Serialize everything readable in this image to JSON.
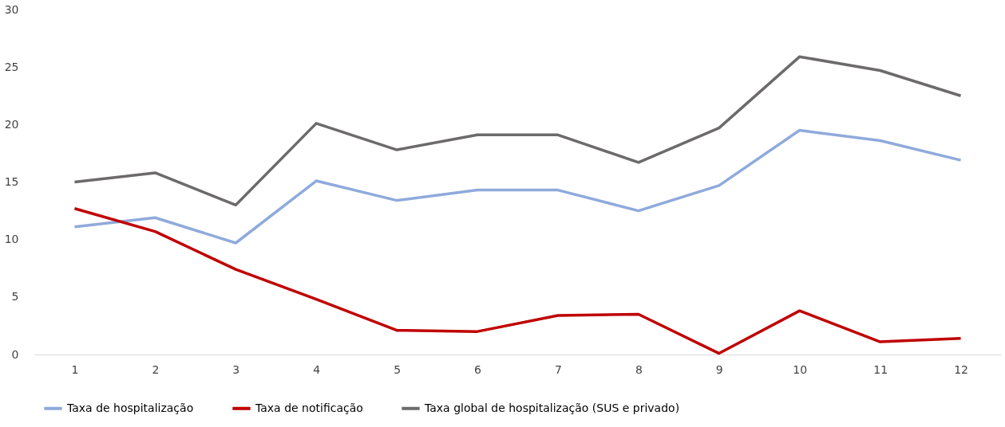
{
  "chart_data": {
    "type": "line",
    "categories": [
      "1",
      "2",
      "3",
      "4",
      "5",
      "6",
      "7",
      "8",
      "9",
      "10",
      "11",
      "12"
    ],
    "series": [
      {
        "name": "Taxa de hospitalização",
        "color": "#8faadc",
        "values": [
          11.1,
          11.9,
          9.7,
          15.1,
          13.4,
          14.3,
          14.3,
          12.5,
          14.7,
          19.5,
          18.6,
          16.9
        ]
      },
      {
        "name": "Taxa de notificação",
        "color": "#c00000",
        "values": [
          12.7,
          10.7,
          7.4,
          4.8,
          2.1,
          2.0,
          3.4,
          3.5,
          0.1,
          3.8,
          1.1,
          1.4
        ]
      },
      {
        "name": "Taxa global de hospitalização (SUS e privado)",
        "color": "#6d6a6b",
        "values": [
          15.0,
          15.8,
          13.0,
          20.1,
          17.8,
          19.1,
          19.1,
          16.7,
          19.7,
          25.9,
          24.7,
          22.5
        ]
      }
    ],
    "ylim": [
      0,
      30
    ],
    "yticks": [
      0,
      5,
      10,
      15,
      20,
      25,
      30
    ],
    "grid": false,
    "legend": "bottom",
    "marker": "none",
    "line_style": "solid"
  }
}
